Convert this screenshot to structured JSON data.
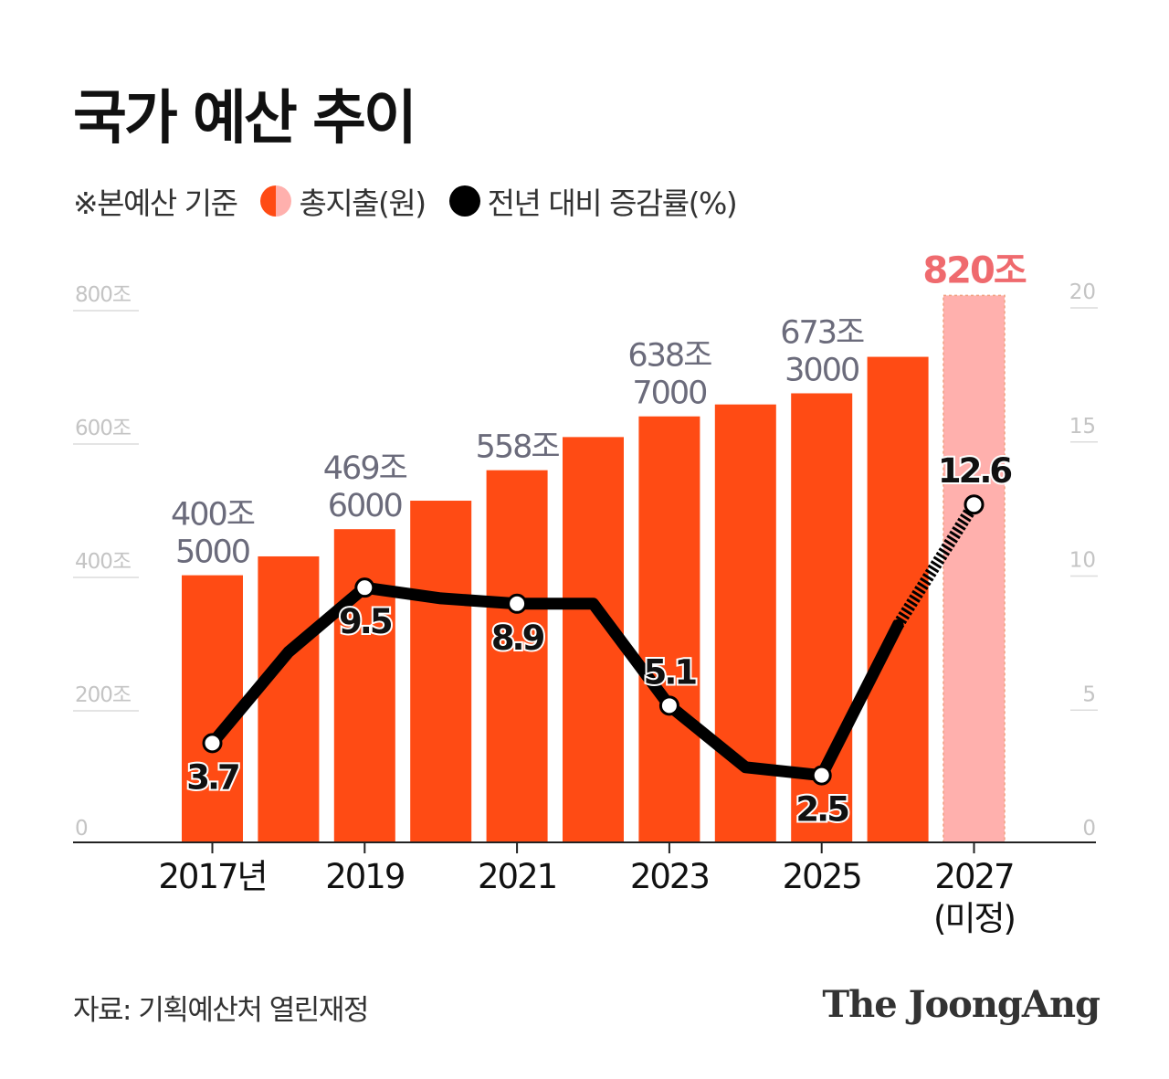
{
  "title": "국가 예산 추이",
  "legend": {
    "note": "※본예산 기준",
    "bar_label": "총지출(원)",
    "line_label": "전년 대비 증감률(%)"
  },
  "source": "자료: 기획예산처 열린재정",
  "logo": "The JoongAng",
  "colors": {
    "bar": "#ff4b14",
    "bar_projected": "#ffb0ad",
    "highlight_text": "#ef6a6e",
    "line": "#000000",
    "label_gray": "#6b6b7b",
    "axis_gray": "#c4c4c4"
  },
  "chart_data": {
    "type": "bar",
    "title": "국가 예산 추이",
    "x": [
      2017,
      2018,
      2019,
      2020,
      2021,
      2022,
      2023,
      2024,
      2025,
      2026,
      2027
    ],
    "xtick_labels": [
      {
        "year": 2017,
        "text": "2017년"
      },
      {
        "year": 2019,
        "text": "2019"
      },
      {
        "year": 2021,
        "text": "2021"
      },
      {
        "year": 2023,
        "text": "2023"
      },
      {
        "year": 2025,
        "text": "2025"
      },
      {
        "year": 2027,
        "text": "2027",
        "sub": "(미정)"
      }
    ],
    "series": [
      {
        "name": "총지출(원)",
        "kind": "bar",
        "unit": "조",
        "values": [
          400.5,
          428.8,
          469.6,
          512.3,
          558.0,
          607.7,
          638.7,
          656.6,
          673.3,
          728.0,
          820.0
        ],
        "projected_from": 2027
      },
      {
        "name": "전년 대비 증감률(%)",
        "kind": "line",
        "values": [
          3.7,
          7.1,
          9.5,
          9.1,
          8.9,
          8.9,
          5.1,
          2.8,
          2.5,
          8.1,
          12.6
        ],
        "projected_from": 2026
      }
    ],
    "left_axis": {
      "ylim": [
        0,
        800
      ],
      "ticks": [
        {
          "value": 0,
          "text": "0"
        },
        {
          "value": 200,
          "text": "200조"
        },
        {
          "value": 400,
          "text": "400조"
        },
        {
          "value": 600,
          "text": "600조"
        },
        {
          "value": 800,
          "text": "800조"
        }
      ]
    },
    "right_axis": {
      "ylim": [
        0,
        20
      ],
      "ticks": [
        {
          "value": 0,
          "text": "0"
        },
        {
          "value": 5,
          "text": "5"
        },
        {
          "value": 10,
          "text": "10"
        },
        {
          "value": 15,
          "text": "15"
        },
        {
          "value": 20,
          "text": "20"
        }
      ]
    },
    "bar_labels": [
      {
        "year": 2017,
        "lines": [
          "400조",
          "5000"
        ]
      },
      {
        "year": 2019,
        "lines": [
          "469조",
          "6000"
        ]
      },
      {
        "year": 2021,
        "lines": [
          "558조"
        ]
      },
      {
        "year": 2023,
        "lines": [
          "638조",
          "7000"
        ]
      },
      {
        "year": 2025,
        "lines": [
          "673조",
          "3000"
        ]
      },
      {
        "year": 2027,
        "lines": [
          "820조"
        ],
        "highlight": true
      }
    ],
    "point_labels": [
      {
        "year": 2017,
        "text": "3.7",
        "pos": "below"
      },
      {
        "year": 2019,
        "text": "9.5",
        "pos": "below"
      },
      {
        "year": 2021,
        "text": "8.9",
        "pos": "below"
      },
      {
        "year": 2023,
        "text": "5.1",
        "pos": "above"
      },
      {
        "year": 2025,
        "text": "2.5",
        "pos": "below"
      },
      {
        "year": 2027,
        "text": "12.6",
        "pos": "above"
      }
    ],
    "marker_years": [
      2017,
      2019,
      2021,
      2023,
      2025,
      2027
    ],
    "grid": false,
    "legend_position": "top-left"
  }
}
